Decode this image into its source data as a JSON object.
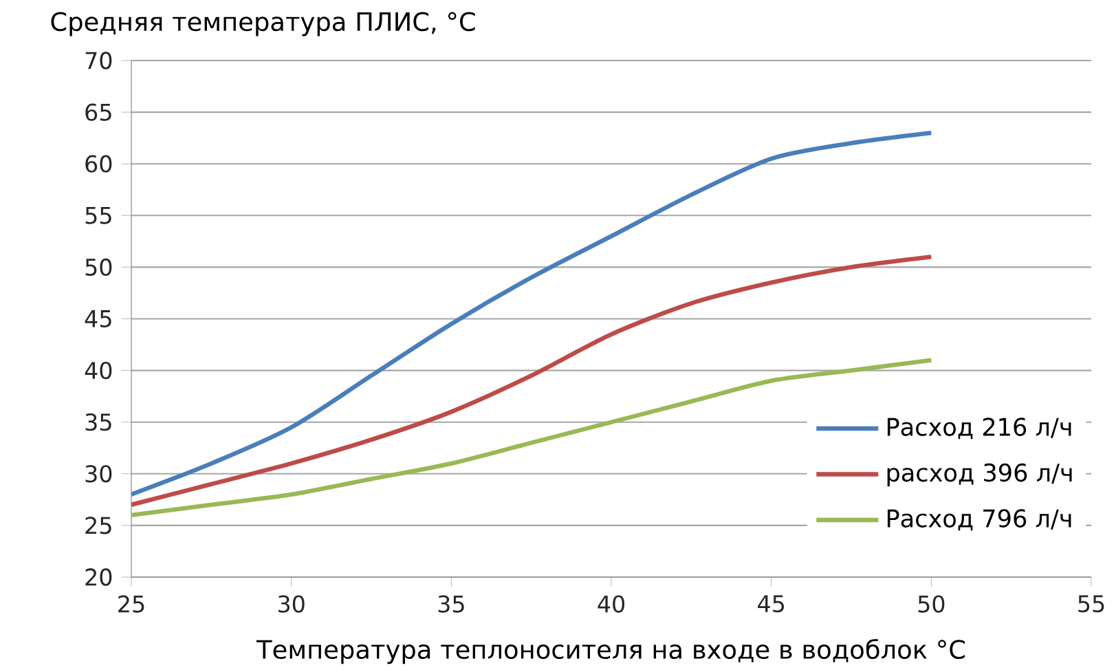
{
  "chart_data": {
    "type": "line",
    "ylabel": "Средняя температура ПЛИС, °С",
    "xlabel": "Температура теплоносителя на входе в водоблок °С",
    "x": [
      25,
      27.5,
      30,
      32.5,
      35,
      37.5,
      40,
      42.5,
      45,
      47.5,
      50
    ],
    "series": [
      {
        "name": "Расход 216 л/ч",
        "color": "#4a7ebb",
        "values": [
          28,
          31,
          34.5,
          39.5,
          44.5,
          49,
          53,
          57,
          60.5,
          62,
          63
        ]
      },
      {
        "name": "расход 396 л/ч",
        "color": "#be4b48",
        "values": [
          27,
          29,
          31,
          33.3,
          36,
          39.5,
          43.5,
          46.5,
          48.5,
          50,
          51
        ]
      },
      {
        "name": "Расход 796 л/ч",
        "color": "#98b954",
        "values": [
          26,
          27,
          28,
          29.5,
          31,
          33,
          35,
          37,
          39,
          40,
          41
        ]
      }
    ],
    "xlim": [
      25,
      55
    ],
    "xticks": [
      25,
      30,
      35,
      40,
      45,
      50,
      55
    ],
    "ylim": [
      20,
      70
    ],
    "yticks": [
      20,
      25,
      30,
      35,
      40,
      45,
      50,
      55,
      60,
      65,
      70
    ],
    "grid": "y",
    "legend": "bottom right",
    "marker": "none",
    "line_style": "solid"
  }
}
